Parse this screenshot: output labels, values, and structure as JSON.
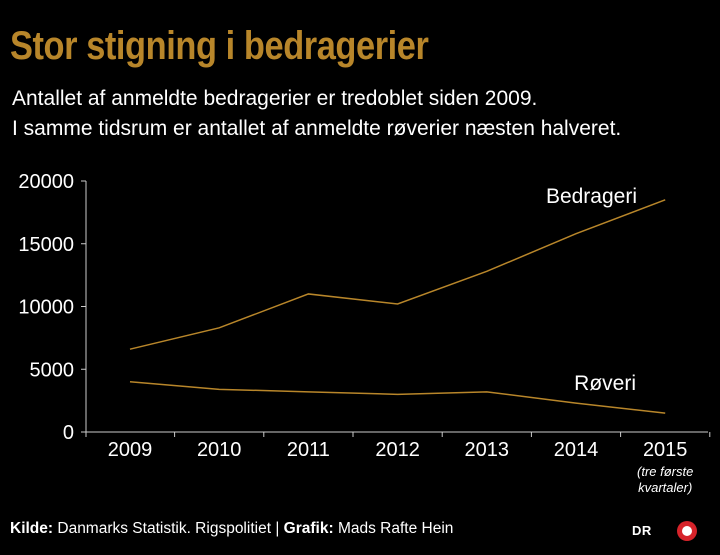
{
  "title": "Stor stigning i bedragerier",
  "subtitle": [
    "Antallet af anmeldte bedragerier er tredoblet siden 2009.",
    "I samme tidsrum er antallet af anmeldte røverier næsten halveret."
  ],
  "footer": {
    "source_label": "Kilde:",
    "source_text": "Danmarks Statistik. Rigspolitiet",
    "graphic_label": "Grafik:",
    "graphic_text": "Mads Rafte Hein"
  },
  "logo": {
    "text": "DR",
    "color": "#d6232a"
  },
  "colors": {
    "line": "#b8862a",
    "axis": "#cccccc",
    "title": "#b8862a"
  },
  "chart_data": {
    "type": "line",
    "categories": [
      "2009",
      "2010",
      "2011",
      "2012",
      "2013",
      "2014",
      "2015"
    ],
    "category_note": {
      "category": "2015",
      "lines": [
        "(tre første",
        "kvartaler)"
      ]
    },
    "ylim": [
      0,
      20000
    ],
    "yticks": [
      0,
      5000,
      10000,
      15000,
      20000
    ],
    "series": [
      {
        "name": "Bedrageri",
        "values": [
          6600,
          8300,
          11000,
          10200,
          12800,
          15800,
          18500
        ]
      },
      {
        "name": "Røveri",
        "values": [
          4000,
          3400,
          3200,
          3000,
          3200,
          2300,
          1500
        ]
      }
    ]
  }
}
